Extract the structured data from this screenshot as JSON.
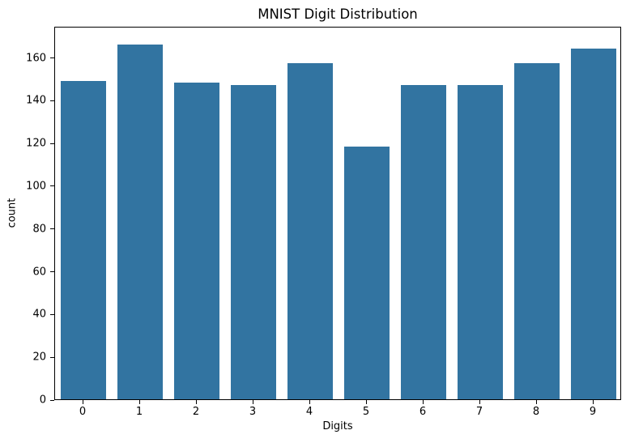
{
  "figure": {
    "title": "MNIST Digit Distribution"
  },
  "chart_data": {
    "type": "bar",
    "title": "MNIST Digit Distribution",
    "xlabel": "Digits",
    "ylabel": "count",
    "categories": [
      "0",
      "1",
      "2",
      "3",
      "4",
      "5",
      "6",
      "7",
      "8",
      "9"
    ],
    "values": [
      149,
      166,
      148,
      147,
      157,
      118,
      147,
      147,
      157,
      164
    ],
    "yticks": [
      0,
      20,
      40,
      60,
      80,
      100,
      120,
      140,
      160
    ],
    "ylim": [
      0,
      174.6
    ],
    "bar_color": "#3274a1",
    "spine_color": "#000000",
    "text_color": "#000000",
    "background_color": "#ffffff",
    "grid": false,
    "legend": null,
    "bar_width_fraction": 0.8
  }
}
